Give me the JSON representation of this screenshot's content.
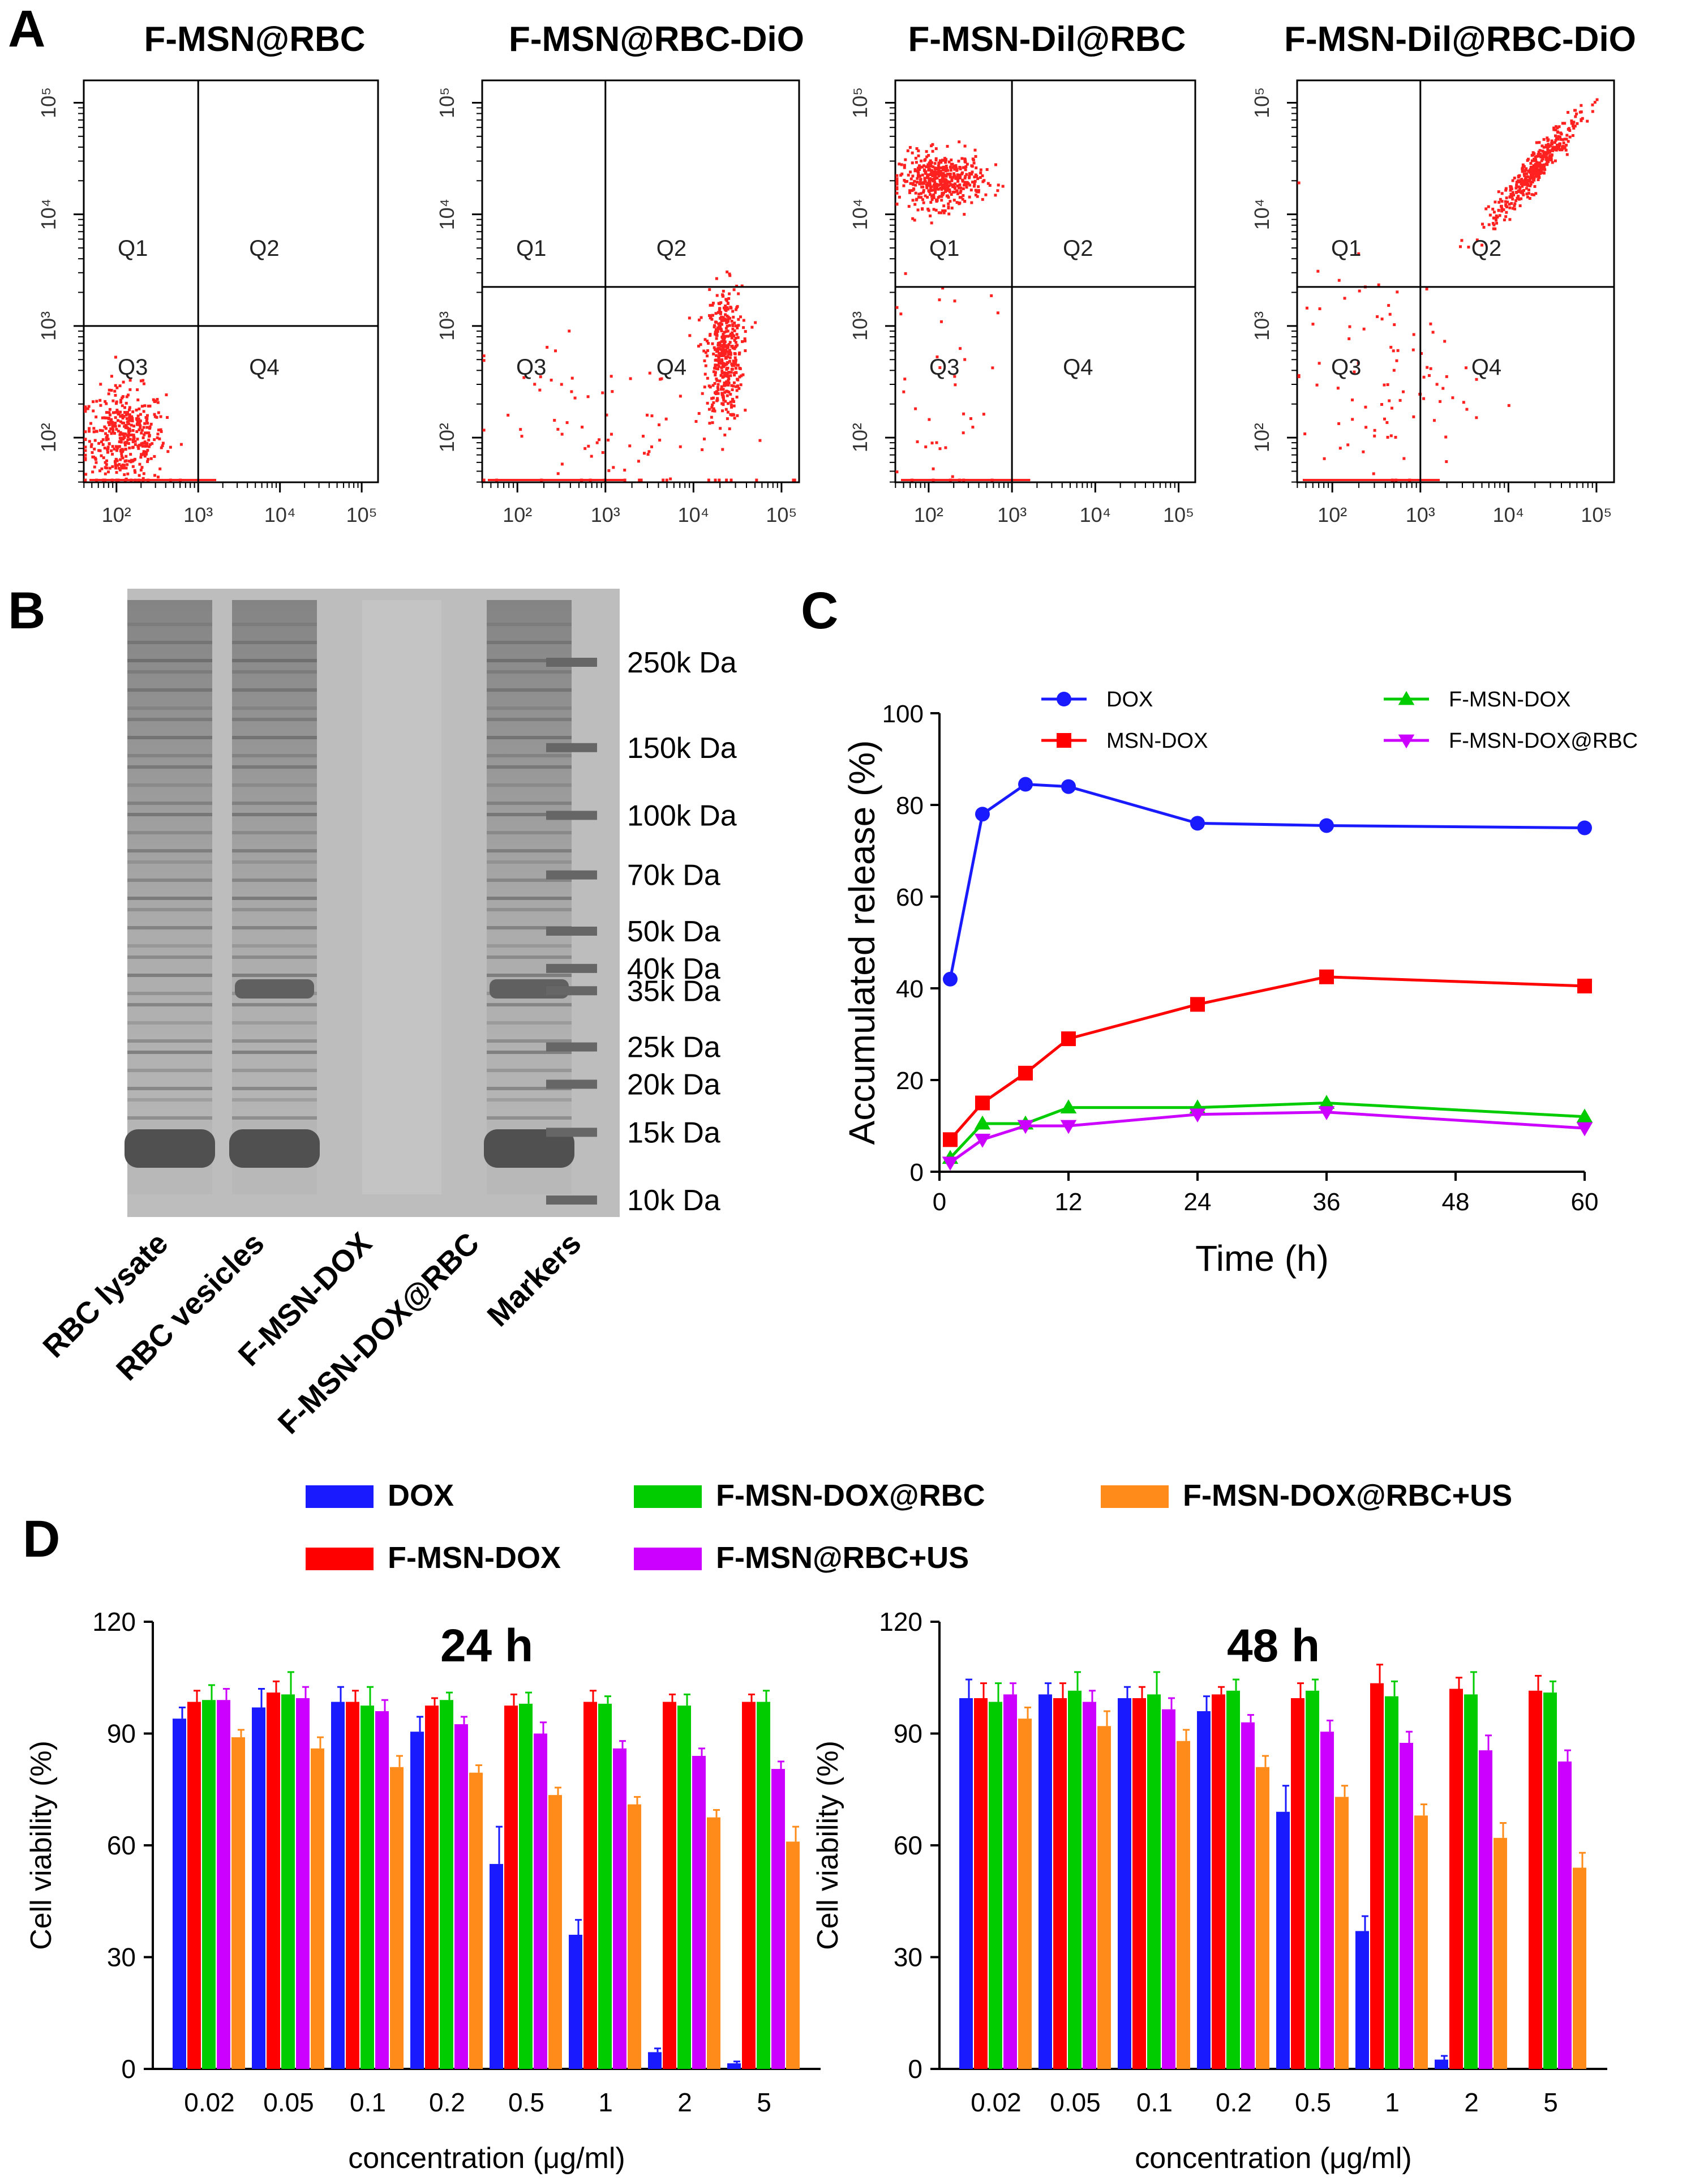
{
  "panel_labels": {
    "a": "A",
    "b": "B",
    "c": "C",
    "d": "D"
  },
  "colors": {
    "dot": "#ff2020",
    "gate": "#000000",
    "dox": "#1a1aff",
    "f_msn_dox": "#ff0000",
    "f_msn_dox_rbc": "#00cc00",
    "f_msn_rbc_us": "#cc00ff",
    "f_msn_dox_rbc_us": "#ff8c1a",
    "msn_dox": "#ff0000",
    "gel_bg": "#bdbdbd",
    "gel_band": "#505050"
  },
  "chart_data": [
    {
      "id": "flow_panels",
      "type": "scatter",
      "x_ticks": [
        "10²",
        "10³",
        "10⁴",
        "10⁵"
      ],
      "y_ticks": [
        "10²",
        "10³",
        "10⁴",
        "10⁵"
      ],
      "log_range": [
        1.6,
        5.2
      ],
      "gate_x": 3,
      "gate_y": 3.1,
      "quadrants": [
        "Q1",
        "Q2",
        "Q3",
        "Q4"
      ],
      "panels": [
        {
          "title": "F-MSN@RBC",
          "gate_y": 3.0,
          "clusters": [
            {
              "cx": 2.1,
              "cy": 2.0,
              "sx": 0.25,
              "sy": 0.22,
              "n": 420
            }
          ]
        },
        {
          "title": "F-MSN@RBC-DiO",
          "gate_y": 3.35,
          "clusters": [
            {
              "cx": 4.35,
              "cy": 2.75,
              "sx": 0.1,
              "sy": 0.3,
              "n": 420
            },
            {
              "cx": 3.2,
              "cy": 2.0,
              "sx": 0.9,
              "sy": 0.5,
              "n": 90
            }
          ]
        },
        {
          "title": "F-MSN-Dil@RBC",
          "gate_y": 3.35,
          "clusters": [
            {
              "cx": 2.15,
              "cy": 4.3,
              "sx": 0.25,
              "sy": 0.12,
              "n": 480
            },
            {
              "cx": 2.2,
              "cy": 2.4,
              "sx": 0.3,
              "sy": 0.6,
              "n": 40
            }
          ]
        },
        {
          "title": "F-MSN-Dil@RBC-DiO",
          "gate_y": 3.35,
          "clusters": [
            {
              "cx": 4.3,
              "cy": 4.4,
              "sx": 0.25,
              "sy": 0.22,
              "n": 420,
              "diag": true
            },
            {
              "cx": 2.6,
              "cy": 2.5,
              "sx": 0.5,
              "sy": 0.5,
              "n": 90
            }
          ]
        }
      ]
    },
    {
      "id": "sds_page",
      "type": "gel",
      "lanes": [
        "RBC lysate",
        "RBC vesicles",
        "F-MSN-DOX",
        "F-MSN-DOX@RBC",
        "Markers"
      ],
      "marker_labels": [
        "250k Da",
        "150k Da",
        "100k Da",
        "70k Da",
        "50k Da",
        "40k Da",
        "35k Da",
        "25k Da",
        "20k Da",
        "15k Da",
        "10k Da"
      ],
      "marker_kda": [
        250,
        150,
        100,
        70,
        50,
        40,
        35,
        25,
        20,
        15,
        10
      ]
    },
    {
      "id": "release",
      "type": "line",
      "title": "",
      "xlabel": "Time (h)",
      "ylabel": "Accumulated release (%)",
      "xlim": [
        0,
        60
      ],
      "ylim": [
        0,
        100
      ],
      "x_ticks": [
        0,
        12,
        24,
        36,
        48,
        60
      ],
      "y_ticks": [
        0,
        20,
        40,
        60,
        80,
        100
      ],
      "x": [
        1,
        4,
        8,
        12,
        24,
        36,
        60
      ],
      "series": [
        {
          "name": "DOX",
          "marker": "circle",
          "color": "#1a1aff",
          "values": [
            42,
            78,
            84.5,
            84,
            76,
            75.5,
            75
          ]
        },
        {
          "name": "MSN-DOX",
          "marker": "square",
          "color": "#ff0000",
          "values": [
            7,
            15,
            21.5,
            29,
            36.5,
            42.5,
            40.5
          ]
        },
        {
          "name": "F-MSN-DOX",
          "marker": "triangle",
          "color": "#00cc00",
          "values": [
            3,
            10.5,
            10.5,
            14,
            14,
            15,
            12
          ]
        },
        {
          "name": "F-MSN-DOX@RBC",
          "marker": "triangle-down",
          "color": "#cc00ff",
          "values": [
            2,
            7,
            10,
            10,
            12.5,
            13,
            9.5
          ]
        }
      ]
    },
    {
      "id": "viability",
      "type": "bar",
      "ylabel": "Cell viability (%)",
      "xlabel": "concentration (μg/ml)",
      "ylim": [
        0,
        120
      ],
      "y_ticks": [
        0,
        30,
        60,
        90,
        120
      ],
      "categories": [
        "0.02",
        "0.05",
        "0.1",
        "0.2",
        "0.5",
        "1",
        "2",
        "5"
      ],
      "legend": [
        "DOX",
        "F-MSN-DOX@RBC",
        "F-MSN-DOX@RBC+US",
        "F-MSN-DOX",
        "F-MSN@RBC+US"
      ],
      "panels": [
        {
          "title": "24 h",
          "series": [
            {
              "name": "DOX",
              "color": "#1a1aff",
              "values": [
                94,
                97,
                98.5,
                90.5,
                55,
                36,
                4.5,
                1.5
              ],
              "err": [
                3,
                5,
                4,
                4,
                10,
                4,
                1,
                0.5
              ]
            },
            {
              "name": "F-MSN-DOX",
              "color": "#ff0000",
              "values": [
                98.5,
                101,
                98.5,
                97.5,
                97.5,
                98.5,
                98.5,
                98.5
              ],
              "err": [
                3,
                3,
                3,
                2,
                3,
                3,
                2,
                2
              ]
            },
            {
              "name": "F-MSN-DOX@RBC",
              "color": "#00cc00",
              "values": [
                99,
                100.5,
                97.5,
                99,
                98,
                98,
                97.5,
                98.5
              ],
              "err": [
                4,
                6,
                5,
                2,
                3,
                2,
                3,
                3
              ]
            },
            {
              "name": "F-MSN@RBC+US",
              "color": "#cc00ff",
              "values": [
                99,
                99.5,
                96,
                92.5,
                90,
                86,
                84,
                80.5
              ],
              "err": [
                3,
                3,
                3,
                2,
                3,
                2,
                2,
                2
              ]
            },
            {
              "name": "F-MSN-DOX@RBC+US",
              "color": "#ff8c1a",
              "values": [
                89,
                86,
                81,
                79.5,
                73.5,
                71,
                67.5,
                61
              ],
              "err": [
                2,
                3,
                3,
                2,
                2,
                2,
                2,
                4
              ]
            }
          ]
        },
        {
          "title": "48 h",
          "series": [
            {
              "name": "DOX",
              "color": "#1a1aff",
              "values": [
                99.5,
                100.5,
                99.5,
                96,
                69,
                37,
                2.5,
                0
              ],
              "err": [
                5,
                3,
                3,
                4,
                7,
                4,
                1,
                0
              ]
            },
            {
              "name": "F-MSN-DOX",
              "color": "#ff0000",
              "values": [
                99.5,
                99.5,
                99.5,
                100.5,
                99.5,
                103.5,
                102,
                101.5
              ],
              "err": [
                4,
                4,
                3,
                2,
                4,
                5,
                3,
                4
              ]
            },
            {
              "name": "F-MSN-DOX@RBC",
              "color": "#00cc00",
              "values": [
                98.5,
                101.5,
                100.5,
                101.5,
                101.5,
                100,
                100.5,
                101
              ],
              "err": [
                5,
                5,
                6,
                3,
                3,
                4,
                6,
                3
              ]
            },
            {
              "name": "F-MSN@RBC+US",
              "color": "#cc00ff",
              "values": [
                100.5,
                98.5,
                96.5,
                93,
                90.5,
                87.5,
                85.5,
                82.5
              ],
              "err": [
                3,
                3,
                3,
                2,
                3,
                3,
                4,
                3
              ]
            },
            {
              "name": "F-MSN-DOX@RBC+US",
              "color": "#ff8c1a",
              "values": [
                94,
                92,
                88,
                81,
                73,
                68,
                62,
                54
              ],
              "err": [
                3,
                4,
                3,
                3,
                3,
                3,
                4,
                4
              ]
            }
          ]
        }
      ]
    }
  ]
}
